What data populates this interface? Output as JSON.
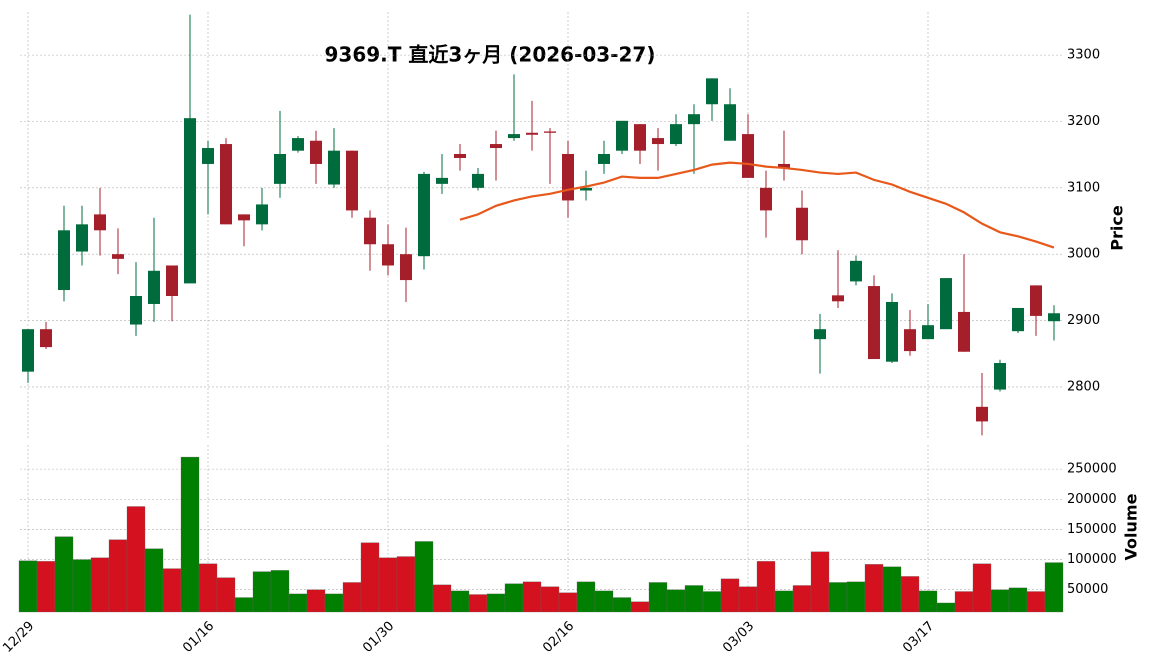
{
  "chart_data": [
    {
      "type": "candlestick",
      "title": "9369.T  直近3ヶ月  (2026-03-27)",
      "y_label": "Price",
      "open": [
        2823,
        2887,
        2946,
        3004,
        3060,
        3000,
        2894,
        2925,
        2983,
        2956,
        3136,
        3166,
        3060,
        3045,
        3106,
        3156,
        3171,
        3105,
        3156,
        3055,
        3015,
        3000,
        2997,
        3106,
        3151,
        3100,
        3166,
        3175,
        3183,
        3185,
        3151,
        3096,
        3136,
        3156,
        3196,
        3175,
        3166,
        3196,
        3226,
        3171,
        3181,
        3100,
        3136,
        3070,
        2872,
        2938,
        2959,
        2952,
        2838,
        2887,
        2872,
        2887,
        2913,
        2770,
        2796,
        2884,
        2953,
        2899
      ],
      "high": [
        2887,
        2898,
        3073,
        3073,
        3100,
        3039,
        2988,
        3055,
        2983,
        3361,
        3171,
        3175,
        3060,
        3100,
        3216,
        3178,
        3186,
        3190,
        3156,
        3066,
        3045,
        3040,
        3124,
        3151,
        3166,
        3130,
        3186,
        3271,
        3231,
        3190,
        3171,
        3126,
        3171,
        3201,
        3196,
        3190,
        3211,
        3226,
        3265,
        3250,
        3211,
        3126,
        3186,
        3096,
        2910,
        3006,
        2998,
        2968,
        2941,
        2916,
        2925,
        2964,
        3000,
        2821,
        2841,
        2919,
        2953,
        2923
      ],
      "low": [
        2806,
        2857,
        2929,
        2983,
        2998,
        2970,
        2877,
        2898,
        2899,
        2956,
        3060,
        3045,
        3012,
        3036,
        3085,
        3153,
        3106,
        3100,
        3055,
        2975,
        2968,
        2928,
        2977,
        3091,
        3126,
        3096,
        3111,
        3171,
        3156,
        3106,
        3055,
        3081,
        3121,
        3151,
        3136,
        3126,
        3163,
        3121,
        3201,
        3171,
        3115,
        3025,
        3111,
        3000,
        2820,
        2919,
        2953,
        2842,
        2836,
        2847,
        2872,
        2887,
        2853,
        2727,
        2793,
        2881,
        2877,
        2870
      ],
      "close": [
        2887,
        2860,
        3036,
        3045,
        3036,
        2993,
        2937,
        2975,
        2937,
        3205,
        3160,
        3045,
        3051,
        3075,
        3151,
        3175,
        3136,
        3156,
        3066,
        3015,
        2983,
        2961,
        3121,
        3115,
        3145,
        3121,
        3160,
        3181,
        3180,
        3183,
        3081,
        3100,
        3151,
        3201,
        3156,
        3166,
        3196,
        3211,
        3265,
        3226,
        3115,
        3066,
        3130,
        3021,
        2887,
        2929,
        2990,
        2842,
        2928,
        2854,
        2893,
        2964,
        2853,
        2748,
        2836,
        2919,
        2907,
        2911
      ],
      "up_color": "#006b3c",
      "down_color": "#a51f2b",
      "moving_average": {
        "color": "#e8581a",
        "values": [
          null,
          null,
          null,
          null,
          null,
          null,
          null,
          null,
          null,
          null,
          null,
          null,
          null,
          null,
          null,
          null,
          null,
          null,
          null,
          null,
          null,
          null,
          null,
          null,
          3052,
          3060,
          3073,
          3081,
          3087,
          3091,
          3097,
          3102,
          3108,
          3117,
          3115,
          3115,
          3121,
          3127,
          3135,
          3138,
          3136,
          3132,
          3130,
          3127,
          3123,
          3121,
          3123,
          3112,
          3105,
          3094,
          3085,
          3076,
          3063,
          3046,
          3033,
          3027,
          3019,
          3010
        ]
      },
      "ylim": [
        2720,
        3365
      ],
      "yticks": [
        2800,
        2900,
        3000,
        3100,
        3200,
        3300
      ],
      "grid": true
    },
    {
      "type": "bar",
      "y_label": "Volume",
      "categories": [
        "12/29",
        null,
        null,
        null,
        null,
        null,
        null,
        null,
        null,
        null,
        "01/16",
        null,
        null,
        null,
        null,
        null,
        null,
        null,
        null,
        null,
        "01/30",
        null,
        null,
        null,
        null,
        null,
        null,
        null,
        null,
        null,
        "02/16",
        null,
        null,
        null,
        null,
        null,
        null,
        null,
        null,
        null,
        "03/03",
        null,
        null,
        null,
        null,
        null,
        null,
        null,
        null,
        null,
        "03/17",
        null,
        null,
        null,
        null,
        null,
        null,
        null
      ],
      "values": [
        98000,
        97000,
        138000,
        100000,
        103000,
        133000,
        188000,
        118000,
        85000,
        270000,
        93000,
        70000,
        37000,
        80000,
        82000,
        43000,
        50000,
        43000,
        62000,
        128000,
        103000,
        105000,
        130000,
        58000,
        48000,
        42000,
        43000,
        60000,
        63000,
        55000,
        45000,
        63000,
        48000,
        37000,
        30000,
        62000,
        50000,
        57000,
        47000,
        68000,
        55000,
        97000,
        48000,
        57000,
        113000,
        62000,
        63000,
        92000,
        88000,
        72000,
        48000,
        28000,
        47000,
        93000,
        50000,
        53000,
        47000,
        95000
      ],
      "colors": [
        "#007f00",
        "#d4111e",
        "#007f00",
        "#007f00",
        "#d4111e",
        "#d4111e",
        "#d4111e",
        "#007f00",
        "#d4111e",
        "#007f00",
        "#d4111e",
        "#d4111e",
        "#007f00",
        "#007f00",
        "#007f00",
        "#007f00",
        "#d4111e",
        "#007f00",
        "#d4111e",
        "#d4111e",
        "#d4111e",
        "#d4111e",
        "#007f00",
        "#d4111e",
        "#007f00",
        "#d4111e",
        "#007f00",
        "#007f00",
        "#d4111e",
        "#d4111e",
        "#d4111e",
        "#007f00",
        "#007f00",
        "#007f00",
        "#d4111e",
        "#007f00",
        "#007f00",
        "#007f00",
        "#007f00",
        "#d4111e",
        "#d4111e",
        "#d4111e",
        "#007f00",
        "#d4111e",
        "#d4111e",
        "#007f00",
        "#007f00",
        "#d4111e",
        "#007f00",
        "#d4111e",
        "#007f00",
        "#007f00",
        "#d4111e",
        "#d4111e",
        "#007f00",
        "#007f00",
        "#d4111e",
        "#007f00"
      ],
      "ylim": [
        13000,
        290000
      ],
      "yticks": [
        50000,
        100000,
        150000,
        200000,
        250000
      ],
      "grid": true
    }
  ]
}
